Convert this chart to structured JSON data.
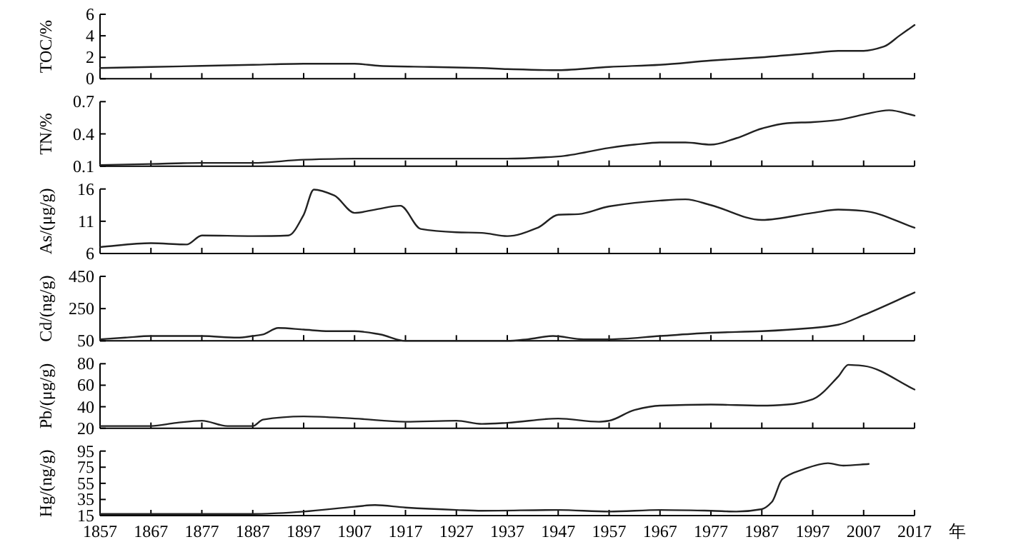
{
  "chart_data": [
    {
      "type": "line",
      "ylabel": "TOC/%",
      "xlim": [
        1857,
        2017
      ],
      "xticks": [
        1857,
        1867,
        1877,
        1887,
        1897,
        1907,
        1917,
        1927,
        1937,
        1947,
        1957,
        1967,
        1977,
        1987,
        1997,
        2007,
        2017
      ],
      "ylim": [
        0,
        6
      ],
      "yticks": [
        0,
        2,
        4,
        6
      ],
      "tick_labels": "y",
      "color": "#222222",
      "x": [
        1857,
        1867,
        1877,
        1887,
        1897,
        1902,
        1907,
        1912,
        1922,
        1932,
        1937,
        1947,
        1957,
        1967,
        1977,
        1987,
        1997,
        2002,
        2007,
        2011,
        2014,
        2017
      ],
      "values": [
        1.0,
        1.1,
        1.2,
        1.3,
        1.4,
        1.4,
        1.4,
        1.2,
        1.1,
        1.0,
        0.9,
        0.8,
        1.1,
        1.3,
        1.7,
        2.0,
        2.4,
        2.6,
        2.6,
        3.0,
        4.0,
        5.0
      ]
    },
    {
      "type": "line",
      "ylabel": "TN/%",
      "xlim": [
        1857,
        2017
      ],
      "xticks": [
        1857,
        1867,
        1877,
        1887,
        1897,
        1907,
        1917,
        1927,
        1937,
        1947,
        1957,
        1967,
        1977,
        1987,
        1997,
        2007,
        2017
      ],
      "ylim": [
        0.1,
        0.7
      ],
      "yticks": [
        0.1,
        0.4,
        0.7
      ],
      "tick_labels": "y",
      "color": "#222222",
      "x": [
        1857,
        1867,
        1877,
        1887,
        1897,
        1907,
        1917,
        1927,
        1937,
        1947,
        1957,
        1962,
        1967,
        1972,
        1977,
        1982,
        1987,
        1992,
        1997,
        2002,
        2007,
        2012,
        2017
      ],
      "values": [
        0.11,
        0.12,
        0.13,
        0.13,
        0.16,
        0.17,
        0.17,
        0.17,
        0.17,
        0.19,
        0.27,
        0.3,
        0.32,
        0.32,
        0.3,
        0.36,
        0.45,
        0.5,
        0.51,
        0.53,
        0.58,
        0.62,
        0.57
      ]
    },
    {
      "type": "line",
      "ylabel": "As/(μg/g)",
      "xlim": [
        1857,
        2017
      ],
      "xticks": [
        1857,
        1867,
        1877,
        1887,
        1897,
        1907,
        1917,
        1927,
        1937,
        1947,
        1957,
        1967,
        1977,
        1987,
        1997,
        2007,
        2017
      ],
      "ylim": [
        6,
        16
      ],
      "yticks": [
        6,
        11,
        16
      ],
      "tick_labels": "y",
      "color": "#222222",
      "x": [
        1857,
        1867,
        1874,
        1877,
        1887,
        1894,
        1897,
        1899,
        1903,
        1907,
        1911,
        1916,
        1920,
        1927,
        1932,
        1937,
        1943,
        1947,
        1951,
        1957,
        1967,
        1972,
        1977,
        1987,
        1997,
        2002,
        2007,
        2017
      ],
      "values": [
        7.0,
        7.6,
        7.4,
        8.8,
        8.7,
        8.8,
        12.0,
        15.9,
        15.0,
        12.3,
        12.8,
        13.4,
        9.8,
        9.3,
        9.2,
        8.7,
        10.0,
        12.0,
        12.1,
        13.3,
        14.2,
        14.4,
        13.5,
        11.2,
        12.3,
        12.8,
        12.6,
        10.0
      ]
    },
    {
      "type": "line",
      "ylabel": "Cd/(ng/g)",
      "xlim": [
        1857,
        2017
      ],
      "xticks": [
        1857,
        1867,
        1877,
        1887,
        1897,
        1907,
        1917,
        1927,
        1937,
        1947,
        1957,
        1967,
        1977,
        1987,
        1997,
        2007,
        2017
      ],
      "ylim": [
        50,
        450
      ],
      "yticks": [
        50,
        250,
        450
      ],
      "tick_labels": "y",
      "color": "#222222",
      "x": [
        1857,
        1862,
        1867,
        1877,
        1884,
        1887,
        1889,
        1892,
        1897,
        1902,
        1907,
        1912,
        1917,
        1927,
        1937,
        1941,
        1946,
        1952,
        1957,
        1967,
        1977,
        1987,
        1997,
        2002,
        2007,
        2017
      ],
      "values": [
        60,
        70,
        80,
        80,
        70,
        80,
        90,
        130,
        120,
        110,
        110,
        90,
        50,
        50,
        50,
        60,
        80,
        60,
        60,
        80,
        100,
        110,
        130,
        150,
        210,
        350
      ]
    },
    {
      "type": "line",
      "ylabel": "Pb/(μg/g)",
      "xlim": [
        1857,
        2017
      ],
      "xticks": [
        1857,
        1867,
        1877,
        1887,
        1897,
        1907,
        1917,
        1927,
        1937,
        1947,
        1957,
        1967,
        1977,
        1987,
        1997,
        2007,
        2017
      ],
      "ylim": [
        20,
        80
      ],
      "yticks": [
        20,
        40,
        60,
        80
      ],
      "tick_labels": "y",
      "color": "#222222",
      "x": [
        1857,
        1867,
        1872,
        1877,
        1882,
        1887,
        1889,
        1897,
        1907,
        1917,
        1927,
        1932,
        1937,
        1947,
        1955,
        1957,
        1962,
        1967,
        1977,
        1987,
        1992,
        1997,
        2002,
        2004,
        2007,
        2017
      ],
      "values": [
        22,
        22,
        25,
        27,
        22,
        22,
        28,
        31,
        29,
        26,
        27,
        24,
        25,
        29,
        26,
        27,
        37,
        41,
        42,
        41,
        42,
        47,
        68,
        79,
        78,
        56
      ]
    },
    {
      "type": "line",
      "ylabel": "Hg/(ng/g)",
      "xlabel": "年",
      "xlim": [
        1857,
        2017
      ],
      "xticks": [
        1857,
        1867,
        1877,
        1887,
        1897,
        1907,
        1917,
        1927,
        1937,
        1947,
        1957,
        1967,
        1977,
        1987,
        1997,
        2007,
        2017
      ],
      "ylim": [
        15,
        95
      ],
      "yticks": [
        15,
        35,
        55,
        75,
        95
      ],
      "color": "#222222",
      "x": [
        1857,
        1877,
        1887,
        1892,
        1897,
        1907,
        1911,
        1917,
        1927,
        1932,
        1947,
        1957,
        1967,
        1977,
        1982,
        1987,
        1989,
        1991,
        1995,
        2000,
        2003,
        2008
      ],
      "values": [
        17,
        17,
        17,
        18,
        20,
        26,
        28,
        25,
        22,
        21,
        22,
        20,
        22,
        21,
        20,
        23,
        32,
        60,
        72,
        80,
        77,
        79
      ]
    }
  ]
}
